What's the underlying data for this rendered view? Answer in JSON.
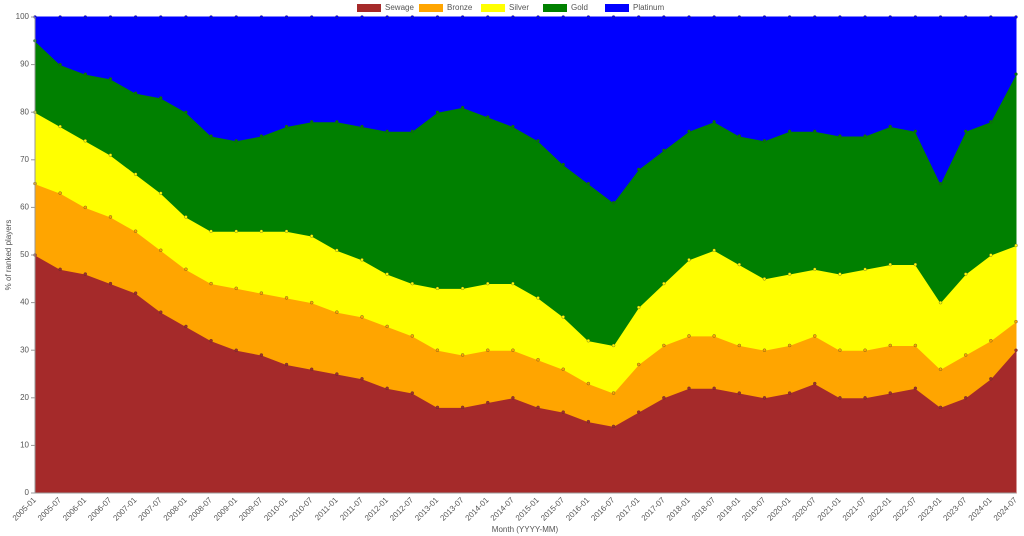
{
  "chart_data": {
    "type": "stacked_area",
    "x_label": "Month (YYYY-MM)",
    "y_label": "% of ranked players",
    "categories": [
      "2005-01",
      "2005-07",
      "2006-01",
      "2006-07",
      "2007-01",
      "2007-07",
      "2008-01",
      "2008-07",
      "2009-01",
      "2009-07",
      "2010-01",
      "2010-07",
      "2011-01",
      "2011-07",
      "2012-01",
      "2012-07",
      "2013-01",
      "2013-07",
      "2014-01",
      "2014-07",
      "2015-01",
      "2015-07",
      "2016-01",
      "2016-07",
      "2017-01",
      "2017-07",
      "2018-01",
      "2018-07",
      "2019-01",
      "2019-07",
      "2020-01",
      "2020-07",
      "2021-01",
      "2021-07",
      "2022-01",
      "2022-07",
      "2023-01",
      "2023-07",
      "2024-01",
      "2024-07"
    ],
    "series": [
      {
        "name": "Sewage",
        "color": "#a52a2a",
        "values": [
          50,
          47,
          46,
          44,
          42,
          38,
          35,
          32,
          30,
          29,
          27,
          26,
          25,
          24,
          22,
          21,
          18,
          18,
          19,
          20,
          18,
          17,
          15,
          14,
          17,
          20,
          22,
          22,
          21,
          20,
          21,
          23,
          20,
          20,
          21,
          22,
          18,
          20,
          24,
          30
        ]
      },
      {
        "name": "Bronze",
        "color": "#ffa500",
        "values": [
          15,
          16,
          14,
          14,
          13,
          13,
          12,
          12,
          13,
          13,
          14,
          14,
          13,
          13,
          13,
          12,
          12,
          11,
          11,
          10,
          10,
          9,
          8,
          7,
          10,
          11,
          11,
          11,
          10,
          10,
          10,
          10,
          10,
          10,
          10,
          9,
          8,
          9,
          8,
          6
        ]
      },
      {
        "name": "Silver",
        "color": "#ffff00",
        "values": [
          15,
          14,
          14,
          13,
          12,
          12,
          11,
          11,
          12,
          13,
          14,
          14,
          13,
          12,
          11,
          11,
          13,
          14,
          14,
          14,
          13,
          11,
          9,
          10,
          12,
          13,
          16,
          18,
          17,
          15,
          15,
          14,
          16,
          17,
          17,
          17,
          14,
          17,
          18,
          16
        ]
      },
      {
        "name": "Gold",
        "color": "#008000",
        "values": [
          15,
          13,
          14,
          16,
          17,
          20,
          22,
          20,
          19,
          20,
          22,
          24,
          27,
          28,
          30,
          32,
          37,
          38,
          35,
          33,
          33,
          32,
          33,
          30,
          29,
          28,
          27,
          27,
          27,
          29,
          30,
          29,
          29,
          28,
          29,
          28,
          25,
          30,
          28,
          36
        ]
      },
      {
        "name": "Platinum",
        "color": "#0000ff",
        "values": [
          5,
          10,
          12,
          13,
          16,
          17,
          20,
          25,
          26,
          25,
          23,
          22,
          22,
          23,
          24,
          24,
          20,
          19,
          21,
          23,
          26,
          31,
          35,
          39,
          32,
          28,
          24,
          22,
          25,
          26,
          24,
          24,
          25,
          25,
          23,
          24,
          35,
          24,
          22,
          12
        ]
      }
    ],
    "ylim": [
      0,
      100
    ],
    "yticks": [
      0,
      10,
      20,
      30,
      40,
      50,
      60,
      70,
      80,
      90,
      100
    ],
    "grid": false,
    "legend": "top"
  }
}
